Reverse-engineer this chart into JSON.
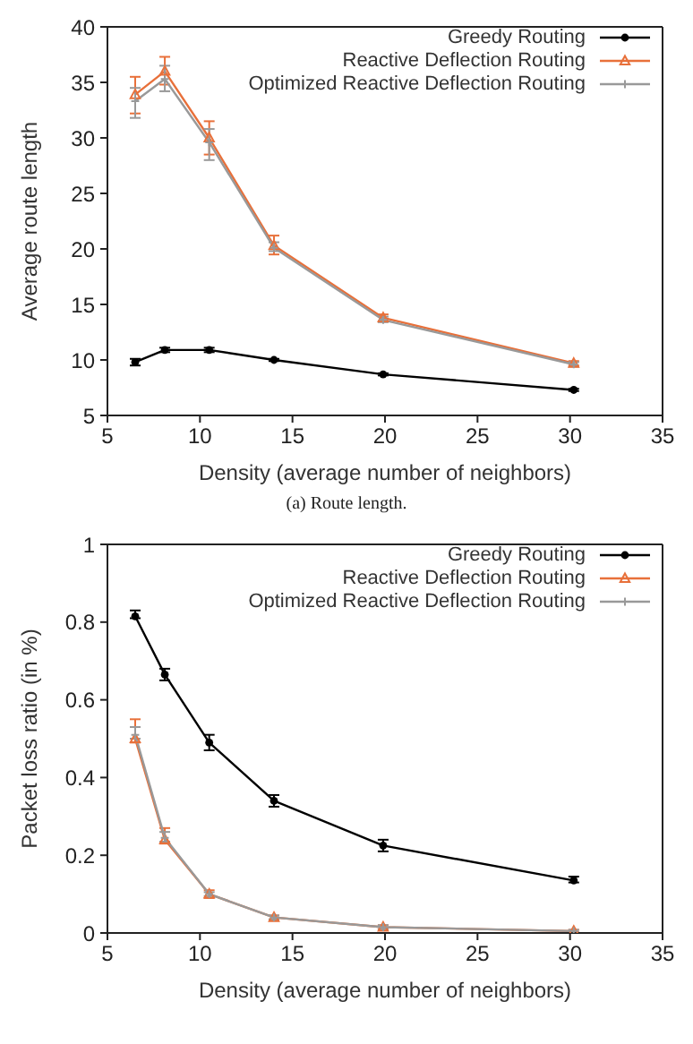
{
  "chart_data": [
    {
      "type": "line",
      "xlabel": "Density (average number of neighbors)",
      "ylabel": "Average route length",
      "x": [
        6.5,
        8.1,
        10.5,
        14,
        19.9,
        30.2
      ],
      "xlim": [
        5,
        35
      ],
      "xticks": [
        5,
        10,
        15,
        20,
        25,
        30,
        35
      ],
      "ylim": [
        5,
        40
      ],
      "yticks": [
        5,
        10,
        15,
        20,
        25,
        30,
        35,
        40
      ],
      "legend": "top right",
      "grid": false,
      "annotations": [
        "(a) Route length."
      ],
      "series": [
        {
          "name": "Greedy Routing",
          "color": "#000000",
          "marker": "circle",
          "values": [
            9.8,
            10.9,
            10.9,
            10,
            8.7,
            7.3
          ],
          "errors": [
            [
              9.5,
              10.1
            ],
            [
              10.7,
              11.1
            ],
            [
              10.7,
              11.1
            ],
            [
              9.9,
              10.1
            ],
            [
              8.6,
              8.8
            ],
            [
              7.2,
              7.4
            ]
          ]
        },
        {
          "name": "Reactive Deflection Routing",
          "color": "#e8703a",
          "marker": "triangle",
          "values": [
            33.9,
            36,
            30,
            20.3,
            13.8,
            9.7
          ],
          "errors": [
            [
              32.2,
              35.5
            ],
            [
              34.8,
              37.3
            ],
            [
              28.5,
              31.5
            ],
            [
              19.5,
              21.2
            ],
            [
              13.5,
              14.1
            ],
            [
              9.5,
              9.9
            ]
          ]
        },
        {
          "name": "Optimized Reactive Deflection Routing",
          "color": "#999999",
          "marker": "cross",
          "values": [
            33.3,
            35.3,
            29.6,
            20.1,
            13.6,
            9.6
          ],
          "errors": [
            [
              31.8,
              34.5
            ],
            [
              34.2,
              36.5
            ],
            [
              28,
              30.8
            ],
            [
              19.8,
              20.6
            ],
            [
              13.4,
              13.9
            ],
            [
              9.4,
              9.8
            ]
          ]
        }
      ]
    },
    {
      "type": "line",
      "xlabel": "Density (average number of neighbors)",
      "ylabel": "Packet loss ratio (in %)",
      "x": [
        6.5,
        8.1,
        10.5,
        14,
        19.9,
        30.2
      ],
      "xlim": [
        5,
        35
      ],
      "xticks": [
        5,
        10,
        15,
        20,
        25,
        30,
        35
      ],
      "ylim": [
        0,
        1
      ],
      "yticks": [
        0,
        0.2,
        0.4,
        0.6,
        0.8,
        1
      ],
      "legend": "top right",
      "grid": false,
      "series": [
        {
          "name": "Greedy Routing",
          "color": "#000000",
          "marker": "circle",
          "values": [
            0.815,
            0.665,
            0.49,
            0.34,
            0.225,
            0.135
          ],
          "errors": [
            [
              0.81,
              0.83
            ],
            [
              0.65,
              0.68
            ],
            [
              0.47,
              0.51
            ],
            [
              0.325,
              0.355
            ],
            [
              0.21,
              0.24
            ],
            [
              0.13,
              0.145
            ]
          ]
        },
        {
          "name": "Reactive Deflection Routing",
          "color": "#e8703a",
          "marker": "triangle",
          "values": [
            0.5,
            0.24,
            0.1,
            0.04,
            0.015,
            0.005
          ],
          "errors": [
            [
              0.49,
              0.55
            ],
            [
              0.23,
              0.27
            ],
            [
              0.09,
              0.11
            ],
            [
              0.035,
              0.045
            ],
            [
              0.01,
              0.02
            ],
            [
              0.002,
              0.008
            ]
          ]
        },
        {
          "name": "Optimized Reactive Deflection Routing",
          "color": "#999999",
          "marker": "cross",
          "values": [
            0.51,
            0.245,
            0.1,
            0.04,
            0.015,
            0.005
          ],
          "errors": [
            [
              0.5,
              0.53
            ],
            [
              0.235,
              0.26
            ],
            [
              0.095,
              0.105
            ],
            [
              0.035,
              0.045
            ],
            [
              0.01,
              0.02
            ],
            [
              0.002,
              0.008
            ]
          ]
        }
      ]
    }
  ]
}
